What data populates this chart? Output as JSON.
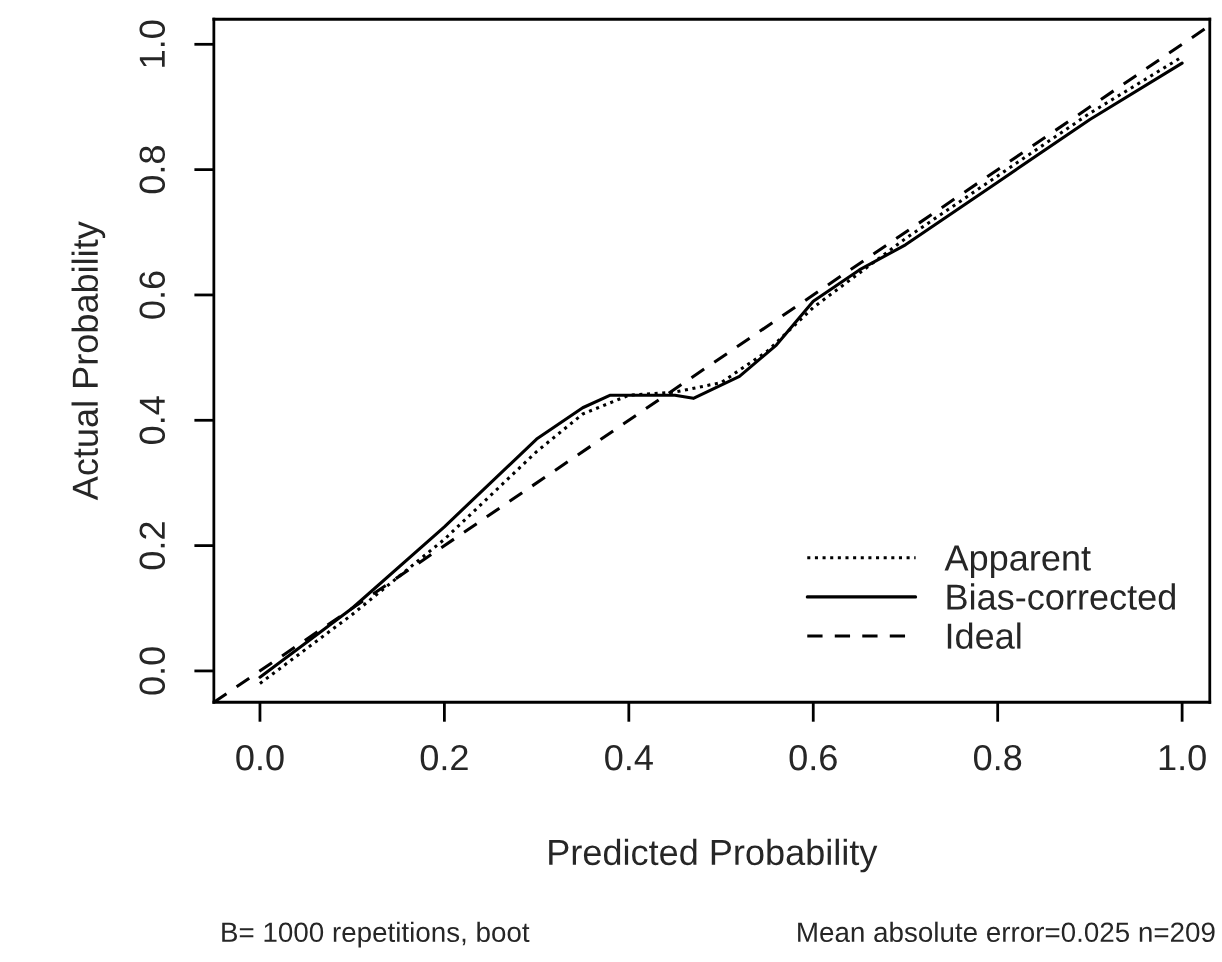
{
  "chart_data": {
    "type": "line",
    "xlabel": "Predicted Probability",
    "ylabel": "Actual Probability",
    "xlim": [
      -0.05,
      1.03
    ],
    "ylim": [
      -0.05,
      1.04
    ],
    "xticks": [
      {
        "value": 0,
        "label": "0.0"
      },
      0.2,
      0.4,
      0.6,
      0.8,
      {
        "value": 1,
        "label": "1.0"
      }
    ],
    "yticks": [
      {
        "value": 0,
        "label": "0.0"
      },
      0.2,
      0.4,
      0.6,
      0.8,
      {
        "value": 1,
        "label": "1.0"
      }
    ],
    "grid": false,
    "legend": "bottom right",
    "series": [
      {
        "name": "Apparent",
        "color": "#000000",
        "line_style": "dotted",
        "x": [
          0.0,
          0.1,
          0.2,
          0.3,
          0.35,
          0.4,
          0.45,
          0.5,
          0.55,
          0.6,
          0.7,
          0.8,
          0.9,
          1.0
        ],
        "values": [
          -0.02,
          0.09,
          0.21,
          0.35,
          0.41,
          0.44,
          0.445,
          0.46,
          0.51,
          0.58,
          0.69,
          0.79,
          0.89,
          0.98
        ]
      },
      {
        "name": "Bias-corrected",
        "color": "#000000",
        "line_style": "solid",
        "x": [
          0.0,
          0.1,
          0.2,
          0.3,
          0.35,
          0.38,
          0.45,
          0.47,
          0.52,
          0.56,
          0.6,
          0.65,
          0.7,
          0.8,
          0.9,
          1.0
        ],
        "values": [
          -0.01,
          0.1,
          0.23,
          0.37,
          0.42,
          0.44,
          0.44,
          0.435,
          0.47,
          0.52,
          0.59,
          0.64,
          0.68,
          0.78,
          0.88,
          0.97
        ]
      },
      {
        "name": "Ideal",
        "color": "#000000",
        "line_style": "dashed",
        "x": [
          -0.05,
          1.03
        ],
        "values": [
          -0.05,
          1.03
        ]
      }
    ],
    "annotations": [
      "B= 1000 repetitions, boot",
      "Mean absolute error=0.025 n=209"
    ]
  }
}
